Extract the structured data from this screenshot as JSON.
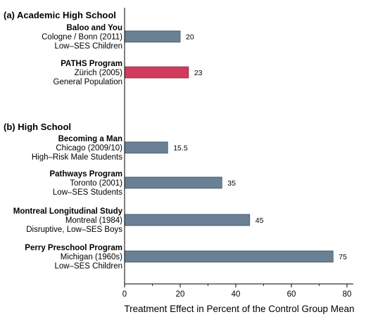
{
  "chart_data": {
    "type": "bar",
    "orientation": "horizontal",
    "xlabel": "Treatment Effect in Percent of the Control Group Mean",
    "xlim": [
      0,
      82
    ],
    "x_ticks": [
      0,
      20,
      40,
      60,
      80
    ],
    "grid": false,
    "colors": {
      "default": "#6a8094",
      "highlight": "#d23a5e",
      "stroke": "#3f5466"
    },
    "sections": [
      {
        "label": "(a) Academic High School",
        "items": [
          {
            "name": "Baloo and You",
            "place": "Cologne / Bonn (2011)",
            "group": "Low–SES Children",
            "value": 20,
            "value_label": "20",
            "highlight": false
          },
          {
            "name": "PATHS Program",
            "place": "Zürich (2005)",
            "group": "General Population",
            "value": 23,
            "value_label": "23",
            "highlight": true
          }
        ]
      },
      {
        "label": "(b) High School",
        "items": [
          {
            "name": "Becoming a Man",
            "place": "Chicago (2009/10)",
            "group": "High–Risk Male Students",
            "value": 15.5,
            "value_label": "15.5",
            "highlight": false
          },
          {
            "name": "Pathways Program",
            "place": "Toronto (2001)",
            "group": "Low–SES Students",
            "value": 35,
            "value_label": "35",
            "highlight": false
          },
          {
            "name": "Montreal Longitudinal Study",
            "place": "Montreal (1984)",
            "group": "Disruptive, Low–SES Boys",
            "value": 45,
            "value_label": "45",
            "highlight": false
          },
          {
            "name": "Perry Preschool Program",
            "place": "Michigan (1960s)",
            "group": "Low–SES Children",
            "value": 75,
            "value_label": "75",
            "highlight": false
          }
        ]
      }
    ]
  }
}
